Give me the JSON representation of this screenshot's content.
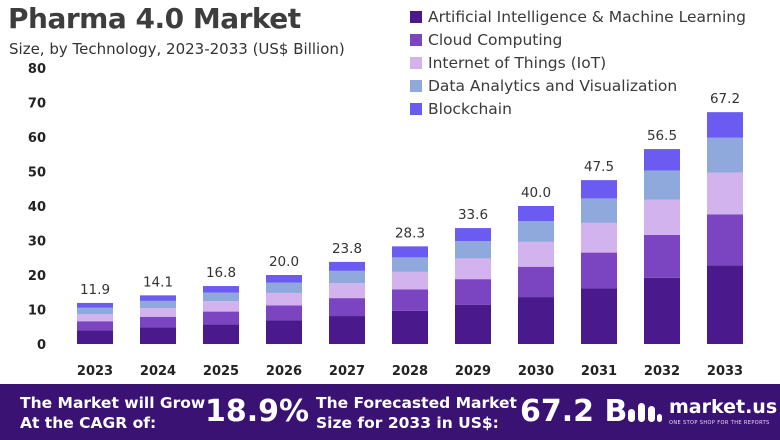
{
  "header": {
    "title": "Pharma 4.0 Market",
    "subtitle": "Size, by Technology, 2023-2033 (US$ Billion)"
  },
  "chart_data": {
    "type": "bar",
    "stacked": true,
    "categories": [
      "2023",
      "2024",
      "2025",
      "2026",
      "2027",
      "2028",
      "2029",
      "2030",
      "2031",
      "2032",
      "2033"
    ],
    "totals": [
      11.9,
      14.1,
      16.8,
      20.0,
      23.8,
      28.3,
      33.6,
      40.0,
      47.5,
      56.5,
      67.2
    ],
    "total_labels": [
      "11.9",
      "14.1",
      "16.8",
      "20.0",
      "23.8",
      "28.3",
      "33.6",
      "40.0",
      "47.5",
      "56.5",
      "67.2"
    ],
    "series": [
      {
        "name": "Artificial Intelligence & Machine Learning",
        "color": "#4a1a8c",
        "values": [
          4.0,
          4.8,
          5.7,
          6.8,
          8.1,
          9.6,
          11.4,
          13.6,
          16.1,
          19.2,
          22.8
        ]
      },
      {
        "name": "Cloud Computing",
        "color": "#7b45c2",
        "values": [
          2.6,
          3.1,
          3.7,
          4.4,
          5.2,
          6.2,
          7.4,
          8.8,
          10.4,
          12.4,
          14.8
        ]
      },
      {
        "name": "Internet of Things (IoT)",
        "color": "#d3b3ee",
        "values": [
          2.1,
          2.5,
          3.0,
          3.6,
          4.3,
          5.1,
          6.0,
          7.2,
          8.6,
          10.2,
          12.1
        ]
      },
      {
        "name": "Data Analytics and Visualization",
        "color": "#8fa9dc",
        "values": [
          1.8,
          2.1,
          2.5,
          3.0,
          3.6,
          4.2,
          5.0,
          6.0,
          7.1,
          8.5,
          10.1
        ]
      },
      {
        "name": "Blockchain",
        "color": "#6b5bf0",
        "values": [
          1.4,
          1.6,
          1.9,
          2.2,
          2.6,
          3.2,
          3.8,
          4.4,
          5.3,
          6.2,
          7.4
        ]
      }
    ],
    "ylim": [
      0,
      80
    ],
    "yticks": [
      0,
      10,
      20,
      30,
      40,
      50,
      60,
      70,
      80
    ],
    "ylabel": "",
    "xlabel": "",
    "grid": false,
    "legend_position": "top-right"
  },
  "footer": {
    "cagr_line1": "The Market will Grow",
    "cagr_line2": "At the CAGR of:",
    "cagr_value": "18.9%",
    "forecast_line1": "The Forecasted Market",
    "forecast_line2": "Size for 2033 in US$:",
    "forecast_value": "67.2 B",
    "brand_name": "market.us",
    "brand_tagline": "ONE STOP SHOP FOR THE REPORTS",
    "background_color": "#3a1273"
  }
}
